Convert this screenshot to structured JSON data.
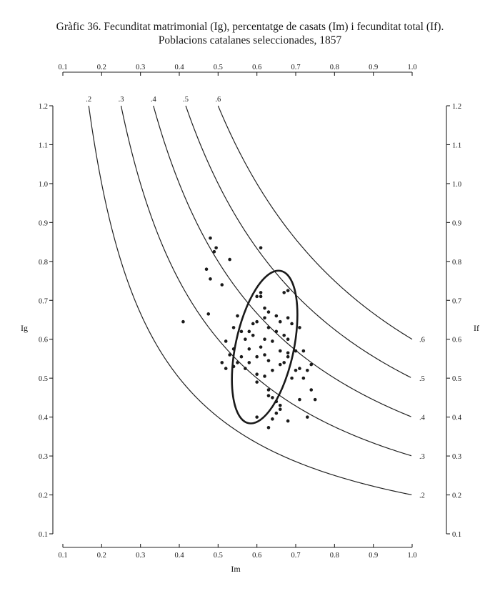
{
  "chart_data": {
    "type": "scatter",
    "title": "Gràfic 36. Fecunditat matrimonial (Ig), percentatge de casats (Im) i fecunditat total (If).",
    "subtitle": "Poblacions catalanes seleccionades, 1857",
    "xlabel": "Im",
    "ylabel": "Ig",
    "y2label": "If",
    "xlim": [
      0.1,
      1.0
    ],
    "ylim": [
      0.1,
      1.2
    ],
    "x_ticks": [
      "0.1",
      "0.2",
      "0.3",
      "0.4",
      "0.5",
      "0.6",
      "0.7",
      "0.8",
      "0.9",
      "1.0"
    ],
    "y_ticks": [
      "0.1",
      "0.2",
      "0.3",
      "0.4",
      "0.5",
      "0.6",
      "0.7",
      "0.8",
      "0.9",
      "1.0",
      "1.1",
      "1.2"
    ],
    "curves": [
      {
        "value": 0.2,
        "label_top": ".2",
        "label_right": ".2"
      },
      {
        "value": 0.3,
        "label_top": ".3",
        "label_right": ".3"
      },
      {
        "value": 0.4,
        "label_top": ".4",
        "label_right": ".4"
      },
      {
        "value": 0.5,
        "label_top": ".5",
        "label_right": ".5"
      },
      {
        "value": 0.6,
        "label_top": ".6",
        "label_right": ".6"
      }
    ],
    "ellipse": {
      "center": [
        0.62,
        0.58
      ],
      "semi_axis_major": 0.2,
      "semi_axis_minor": 0.075,
      "angle_deg": -78
    },
    "points": [
      [
        0.41,
        0.645
      ],
      [
        0.47,
        0.78
      ],
      [
        0.48,
        0.86
      ],
      [
        0.49,
        0.825
      ],
      [
        0.495,
        0.835
      ],
      [
        0.53,
        0.805
      ],
      [
        0.61,
        0.835
      ],
      [
        0.475,
        0.665
      ],
      [
        0.48,
        0.755
      ],
      [
        0.51,
        0.74
      ],
      [
        0.61,
        0.72
      ],
      [
        0.61,
        0.71
      ],
      [
        0.67,
        0.72
      ],
      [
        0.68,
        0.725
      ],
      [
        0.6,
        0.71
      ],
      [
        0.62,
        0.68
      ],
      [
        0.63,
        0.67
      ],
      [
        0.54,
        0.63
      ],
      [
        0.55,
        0.66
      ],
      [
        0.58,
        0.62
      ],
      [
        0.59,
        0.64
      ],
      [
        0.6,
        0.645
      ],
      [
        0.62,
        0.655
      ],
      [
        0.63,
        0.63
      ],
      [
        0.65,
        0.66
      ],
      [
        0.66,
        0.645
      ],
      [
        0.68,
        0.655
      ],
      [
        0.69,
        0.64
      ],
      [
        0.67,
        0.61
      ],
      [
        0.68,
        0.6
      ],
      [
        0.7,
        0.57
      ],
      [
        0.71,
        0.63
      ],
      [
        0.72,
        0.57
      ],
      [
        0.52,
        0.595
      ],
      [
        0.54,
        0.575
      ],
      [
        0.56,
        0.62
      ],
      [
        0.57,
        0.6
      ],
      [
        0.58,
        0.575
      ],
      [
        0.59,
        0.61
      ],
      [
        0.61,
        0.58
      ],
      [
        0.62,
        0.6
      ],
      [
        0.64,
        0.595
      ],
      [
        0.65,
        0.62
      ],
      [
        0.66,
        0.57
      ],
      [
        0.68,
        0.565
      ],
      [
        0.56,
        0.555
      ],
      [
        0.58,
        0.54
      ],
      [
        0.55,
        0.54
      ],
      [
        0.57,
        0.525
      ],
      [
        0.53,
        0.56
      ],
      [
        0.52,
        0.525
      ],
      [
        0.51,
        0.54
      ],
      [
        0.54,
        0.53
      ],
      [
        0.6,
        0.555
      ],
      [
        0.62,
        0.56
      ],
      [
        0.63,
        0.545
      ],
      [
        0.66,
        0.535
      ],
      [
        0.67,
        0.54
      ],
      [
        0.68,
        0.555
      ],
      [
        0.7,
        0.52
      ],
      [
        0.71,
        0.525
      ],
      [
        0.72,
        0.5
      ],
      [
        0.73,
        0.52
      ],
      [
        0.74,
        0.535
      ],
      [
        0.74,
        0.47
      ],
      [
        0.6,
        0.51
      ],
      [
        0.6,
        0.49
      ],
      [
        0.62,
        0.505
      ],
      [
        0.64,
        0.52
      ],
      [
        0.69,
        0.5
      ],
      [
        0.71,
        0.445
      ],
      [
        0.75,
        0.445
      ],
      [
        0.63,
        0.47
      ],
      [
        0.64,
        0.45
      ],
      [
        0.65,
        0.44
      ],
      [
        0.66,
        0.43
      ],
      [
        0.65,
        0.41
      ],
      [
        0.66,
        0.42
      ],
      [
        0.63,
        0.455
      ],
      [
        0.6,
        0.4
      ],
      [
        0.64,
        0.395
      ],
      [
        0.68,
        0.39
      ],
      [
        0.73,
        0.4
      ],
      [
        0.63,
        0.373
      ]
    ]
  }
}
